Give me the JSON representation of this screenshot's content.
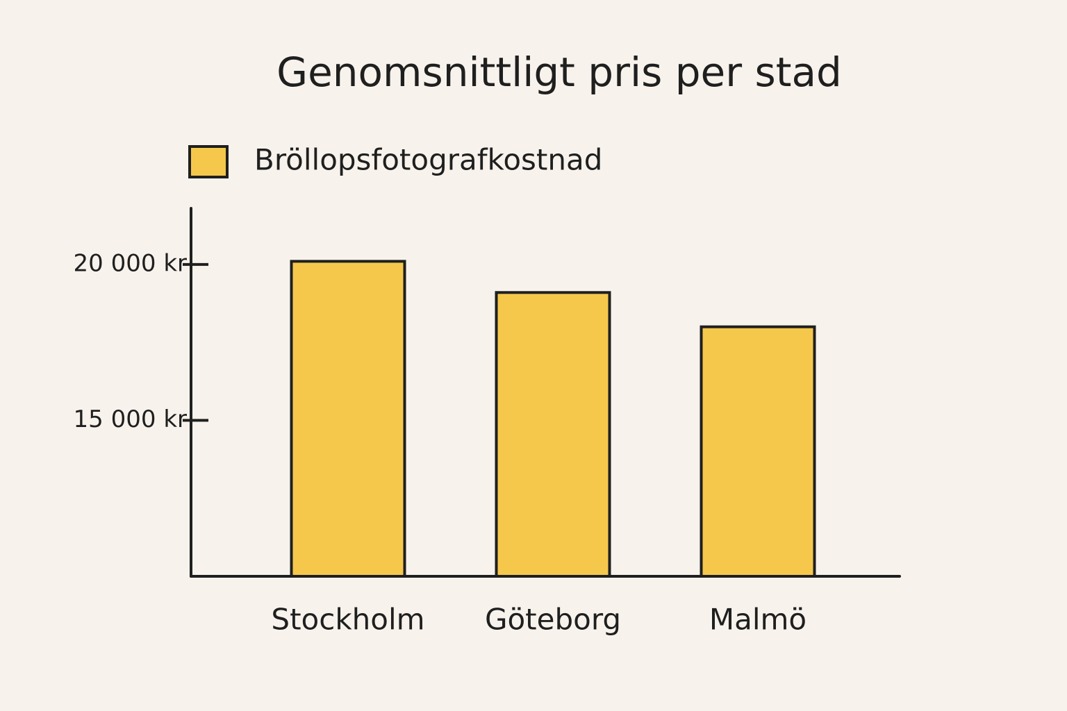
{
  "chart_data": {
    "type": "bar",
    "title": "Genomsnittligt pris per stad",
    "categories": [
      "Stockholm",
      "Göteborg",
      "Malmö"
    ],
    "series": [
      {
        "name": "Bröllopsfotografkostnad",
        "color": "#f5c84c",
        "values": [
          20100,
          19100,
          18000
        ]
      }
    ],
    "ylim": [
      10000,
      21800
    ],
    "yticks": [
      {
        "value": 15000,
        "label": "15 000 kr"
      },
      {
        "value": 20000,
        "label": "20 000 kr"
      }
    ],
    "grid": false,
    "legend": "top-left"
  }
}
